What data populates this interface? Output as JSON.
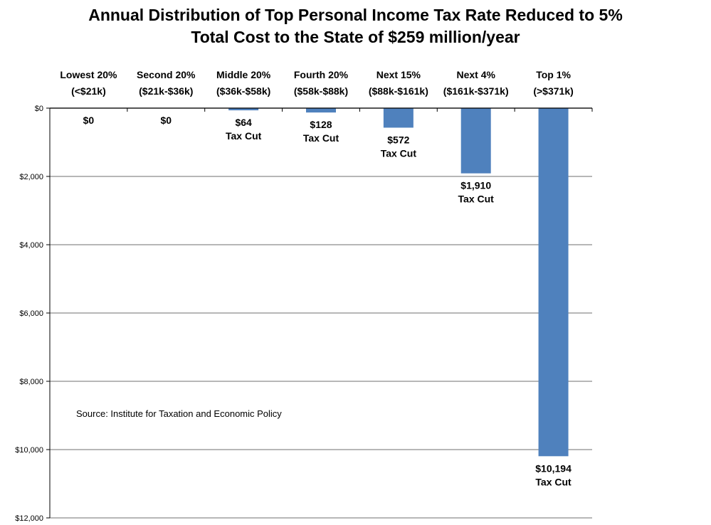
{
  "chart_data": {
    "type": "bar",
    "title": "Annual Distribution of Top Personal Income Tax Rate Reduced to 5%",
    "subtitle": "Total Cost to the State of $259 million/year",
    "categories": [
      {
        "name": "Lowest 20%",
        "range": "(<$21k)"
      },
      {
        "name": "Second 20%",
        "range": "($21k-$36k)"
      },
      {
        "name": "Middle 20%",
        "range": "($36k-$58k)"
      },
      {
        "name": "Fourth 20%",
        "range": "($58k-$88k)"
      },
      {
        "name": "Next 15%",
        "range": "($88k-$161k)"
      },
      {
        "name": "Next 4%",
        "range": "($161k-$371k)"
      },
      {
        "name": "Top 1%",
        "range": "(>$371k)"
      }
    ],
    "values": [
      0,
      0,
      64,
      128,
      572,
      1910,
      10194
    ],
    "data_labels": [
      {
        "amount": "$0",
        "note": ""
      },
      {
        "amount": "$0",
        "note": ""
      },
      {
        "amount": "$64",
        "note": "Tax Cut"
      },
      {
        "amount": "$128",
        "note": "Tax Cut"
      },
      {
        "amount": "$572",
        "note": "Tax Cut"
      },
      {
        "amount": "$1,910",
        "note": "Tax Cut"
      },
      {
        "amount": "$10,194",
        "note": "Tax Cut"
      }
    ],
    "ylim": [
      0,
      12000
    ],
    "y_axis_reversed": true,
    "y_ticks": [
      0,
      2000,
      4000,
      6000,
      8000,
      10000,
      12000
    ],
    "y_tick_labels": [
      "$0",
      "$2,000",
      "$4,000",
      "$6,000",
      "$8,000",
      "$10,000",
      "$12,000"
    ],
    "grid": true,
    "bar_color": "#4f81bd",
    "grid_color": "#8c8c8c"
  },
  "source_note": "Source:  Institute for Taxation and Economic Policy"
}
